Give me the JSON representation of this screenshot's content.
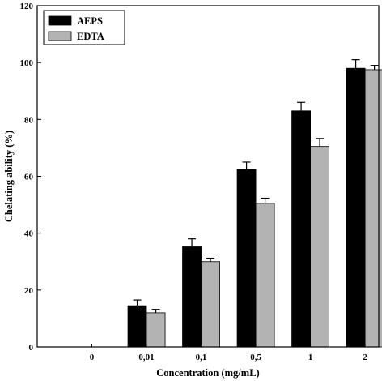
{
  "chart_data": {
    "type": "bar",
    "categories": [
      "0",
      "0,01",
      "0,1",
      "0,5",
      "1",
      "2"
    ],
    "series": [
      {
        "name": "AEPS",
        "values": [
          0,
          14.5,
          35.2,
          62.5,
          83.0,
          98.0
        ],
        "errors": [
          0,
          2.0,
          2.8,
          2.5,
          3.0,
          3.0
        ],
        "color": "#000000"
      },
      {
        "name": "EDTA",
        "values": [
          0,
          12.0,
          30.0,
          50.5,
          70.5,
          97.5
        ],
        "errors": [
          0,
          1.2,
          1.2,
          1.8,
          2.8,
          1.5
        ],
        "color": "#b3b3b3"
      }
    ],
    "xlabel": "Concentration (mg/mL)",
    "ylabel": "Chelating ability (%)",
    "ylim": [
      0,
      120
    ],
    "yticks": [
      0,
      20,
      40,
      60,
      80,
      100,
      120
    ],
    "legend": "top-left",
    "grid": false
  }
}
